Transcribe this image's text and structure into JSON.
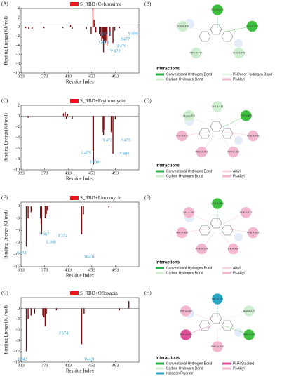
{
  "chart_data": [
    {
      "type": "bar",
      "panel": "(A)",
      "legend": "S_RBD+Cefuroxime",
      "color": "#7b0f12",
      "legend_color": "#e8191e",
      "x": [
        341,
        346,
        352,
        372,
        404,
        417,
        420,
        444,
        452,
        455,
        457,
        460,
        466,
        468,
        470,
        472,
        473,
        474,
        475,
        476,
        477,
        478,
        479,
        484,
        489,
        492,
        500
      ],
      "values": [
        -0.3,
        -0.5,
        -0.4,
        -0.3,
        -0.3,
        0.5,
        -0.4,
        -0.5,
        -1.5,
        4,
        1.5,
        -1.2,
        -1.5,
        -2,
        -3,
        -2.5,
        -5.5,
        -3,
        -2,
        -3.5,
        -3,
        -1.5,
        -4,
        -2,
        -3.5,
        -0.8,
        -0.3
      ],
      "xlim": [
        333,
        533
      ],
      "ylim": [
        -10,
        4
      ],
      "xticks": [
        333,
        373,
        413,
        453,
        493
      ],
      "yticks": [
        4,
        2,
        0,
        -2,
        -4,
        -6,
        -8,
        -10
      ],
      "xlabel": "Residue Index",
      "ylabel": "Binding Energy(KJ/mol)",
      "annotations": [
        "Q474",
        "G476",
        "Y473",
        "P479",
        "S477",
        "Y489"
      ]
    },
    {
      "type": "bar",
      "panel": "(C)",
      "legend": "S_RBD+Erythromycin",
      "color": "#7b0f12",
      "legend_color": "#e8191e",
      "x": [
        345,
        405,
        408,
        410,
        412,
        420,
        455,
        456,
        471,
        473,
        475,
        486,
        489,
        493
      ],
      "values": [
        -0.3,
        0.5,
        0.8,
        -0.5,
        0.4,
        -0.5,
        -6.5,
        -9,
        -3,
        -3.5,
        -2.5,
        -3,
        -7,
        -0.6
      ],
      "xlim": [
        333,
        533
      ],
      "ylim": [
        -10,
        2
      ],
      "xticks": [
        333,
        373,
        413,
        453,
        493
      ],
      "yticks": [
        2,
        0,
        -2,
        -4,
        -6,
        -8,
        -10
      ],
      "xlabel": "Residue Index",
      "ylabel": "Binding Energy(KJ/mol)",
      "annotations": [
        "L455",
        "F456",
        "Y473",
        "A475",
        "Y489"
      ]
    },
    {
      "type": "bar",
      "panel": "(E)",
      "legend": "S_RBD+Lincomycin",
      "color": "#7b0f12",
      "legend_color": "#e8191e",
      "x": [
        342,
        345,
        350,
        366,
        367,
        368,
        374,
        376,
        378,
        436,
        439,
        482
      ],
      "values": [
        -10,
        -3,
        -1.5,
        -3,
        -4.5,
        -7,
        -3,
        -2,
        -1,
        -7,
        -2,
        -0.3
      ],
      "xlim": [
        333,
        533
      ],
      "ylim": [
        -15,
        1
      ],
      "xticks": [
        333,
        373,
        413,
        453,
        493
      ],
      "yticks": [
        0,
        -3,
        -6,
        -9,
        -12,
        -15
      ],
      "xlabel": "Residue Index",
      "ylabel": "Binding Energy(KJ/mol)",
      "annotations": [
        "Y367",
        "F374",
        "L368",
        "F342",
        "W436"
      ]
    },
    {
      "type": "bar",
      "panel": "(G)",
      "legend": "S_RBD+Ofloxacin",
      "color": "#7b0f12",
      "legend_color": "#e8191e",
      "x": [
        342,
        345,
        350,
        356,
        370,
        372,
        374,
        376,
        393,
        436,
        440,
        500,
        516
      ],
      "values": [
        -12,
        -3,
        -2,
        -1.5,
        -2,
        -2.5,
        -5,
        -1.5,
        -0.5,
        -10,
        -1.5,
        -0.5,
        2
      ],
      "xlim": [
        333,
        533
      ],
      "ylim": [
        -15,
        3
      ],
      "xticks": [
        333,
        373,
        413,
        453,
        493
      ],
      "yticks": [
        0,
        -3,
        -6,
        -9,
        -12,
        -15
      ],
      "xlabel": "Residue Index",
      "ylabel": "Binding Energy(KJ/mol)",
      "annotations": [
        "F374",
        "F342",
        "W436"
      ]
    }
  ],
  "diagrams": [
    {
      "panel": "(B)",
      "residues": [
        {
          "label": "GLY A:476",
          "color": "#3fbf3f"
        },
        {
          "label": "GLN A:474",
          "color": "#3fbf3f"
        },
        {
          "label": "THR A:478",
          "color": "#cfeecf"
        },
        {
          "label": "PRO A:479",
          "color": "#cfeecf"
        },
        {
          "label": "THR A:470",
          "color": "#cfeecf"
        }
      ],
      "title": "Interactions",
      "legend": [
        {
          "text": "Conventional Hydrogen Bond",
          "color": "#2fb34a"
        },
        {
          "text": "Pi-Donor Hydrogen Bond",
          "color": "#e4f5e4"
        },
        {
          "text": "Carbon Hydrogen Bond",
          "color": "#cfeecf"
        },
        {
          "text": "Pi-Alkyl",
          "color": "#f2b6cf"
        }
      ]
    },
    {
      "panel": "(D)",
      "residues": [
        {
          "label": "LYS A:417",
          "color": "#cfeecf"
        },
        {
          "label": "TYR A:453",
          "color": "#3fbf3f"
        },
        {
          "label": "PHE A:456",
          "color": "#f2b6cf"
        },
        {
          "label": "TYR A:489",
          "color": "#f2b6cf"
        },
        {
          "label": "PRO A:491",
          "color": "#f2b6cf"
        },
        {
          "label": "TYR A:473",
          "color": "#f2b6cf"
        },
        {
          "label": "ALA A:475",
          "color": "#cfeecf"
        }
      ],
      "title": "Interactions",
      "legend": [
        {
          "text": "Conventional Hydrogen Bond",
          "color": "#2fb34a"
        },
        {
          "text": "Alkyl",
          "color": "#f7d3e2"
        },
        {
          "text": "Carbon Hydrogen Bond",
          "color": "#cfeecf"
        },
        {
          "text": "Pi-Alkyl",
          "color": "#f2b6cf"
        }
      ]
    },
    {
      "panel": "(F)",
      "residues": [
        {
          "label": "LEU A:368",
          "color": "#3fbf3f"
        },
        {
          "label": "PHE A:377",
          "color": "#f2b6cf"
        },
        {
          "label": "PHE A:342",
          "color": "#f2b6cf"
        },
        {
          "label": "ILE A:434",
          "color": "#f2b6cf"
        },
        {
          "label": "PHE A:374",
          "color": "#f2b6cf"
        },
        {
          "label": "TRP A:436",
          "color": "#f2b6cf"
        },
        {
          "label": "VAL A:367",
          "color": "#f2b6cf"
        }
      ],
      "title": "Interactions",
      "legend": [
        {
          "text": "Conventional Hydrogen Bond",
          "color": "#2fb34a"
        },
        {
          "text": "Alkyl",
          "color": "#f7d3e2"
        },
        {
          "text": "Carbon Hydrogen Bond",
          "color": "#cfeecf"
        },
        {
          "text": "Pi-Alkyl",
          "color": "#f2b6cf"
        }
      ]
    },
    {
      "panel": "(H)",
      "residues": [
        {
          "label": "VAL A:367",
          "color": "#2aa6c4"
        },
        {
          "label": "ALA A:372",
          "color": "#cfeecf"
        },
        {
          "label": "SER A:373",
          "color": "#3fbf3f"
        },
        {
          "label": "PHE A:342",
          "color": "#f2b6cf"
        },
        {
          "label": "PHE A:374",
          "color": "#e0509a"
        },
        {
          "label": "TRP A:436",
          "color": "#f2b6cf"
        }
      ],
      "title": "Interactions",
      "legend": [
        {
          "text": "Conventional Hydrogen Bond",
          "color": "#2fb34a"
        },
        {
          "text": "Pi-Pi Stacked",
          "color": "#e0509a"
        },
        {
          "text": "Carbon Hydrogen Bond",
          "color": "#cfeecf"
        },
        {
          "text": "Pi-Alkyl",
          "color": "#f2b6cf"
        },
        {
          "text": "Halogen(Fluorine)",
          "color": "#2aa6c4"
        }
      ]
    }
  ]
}
